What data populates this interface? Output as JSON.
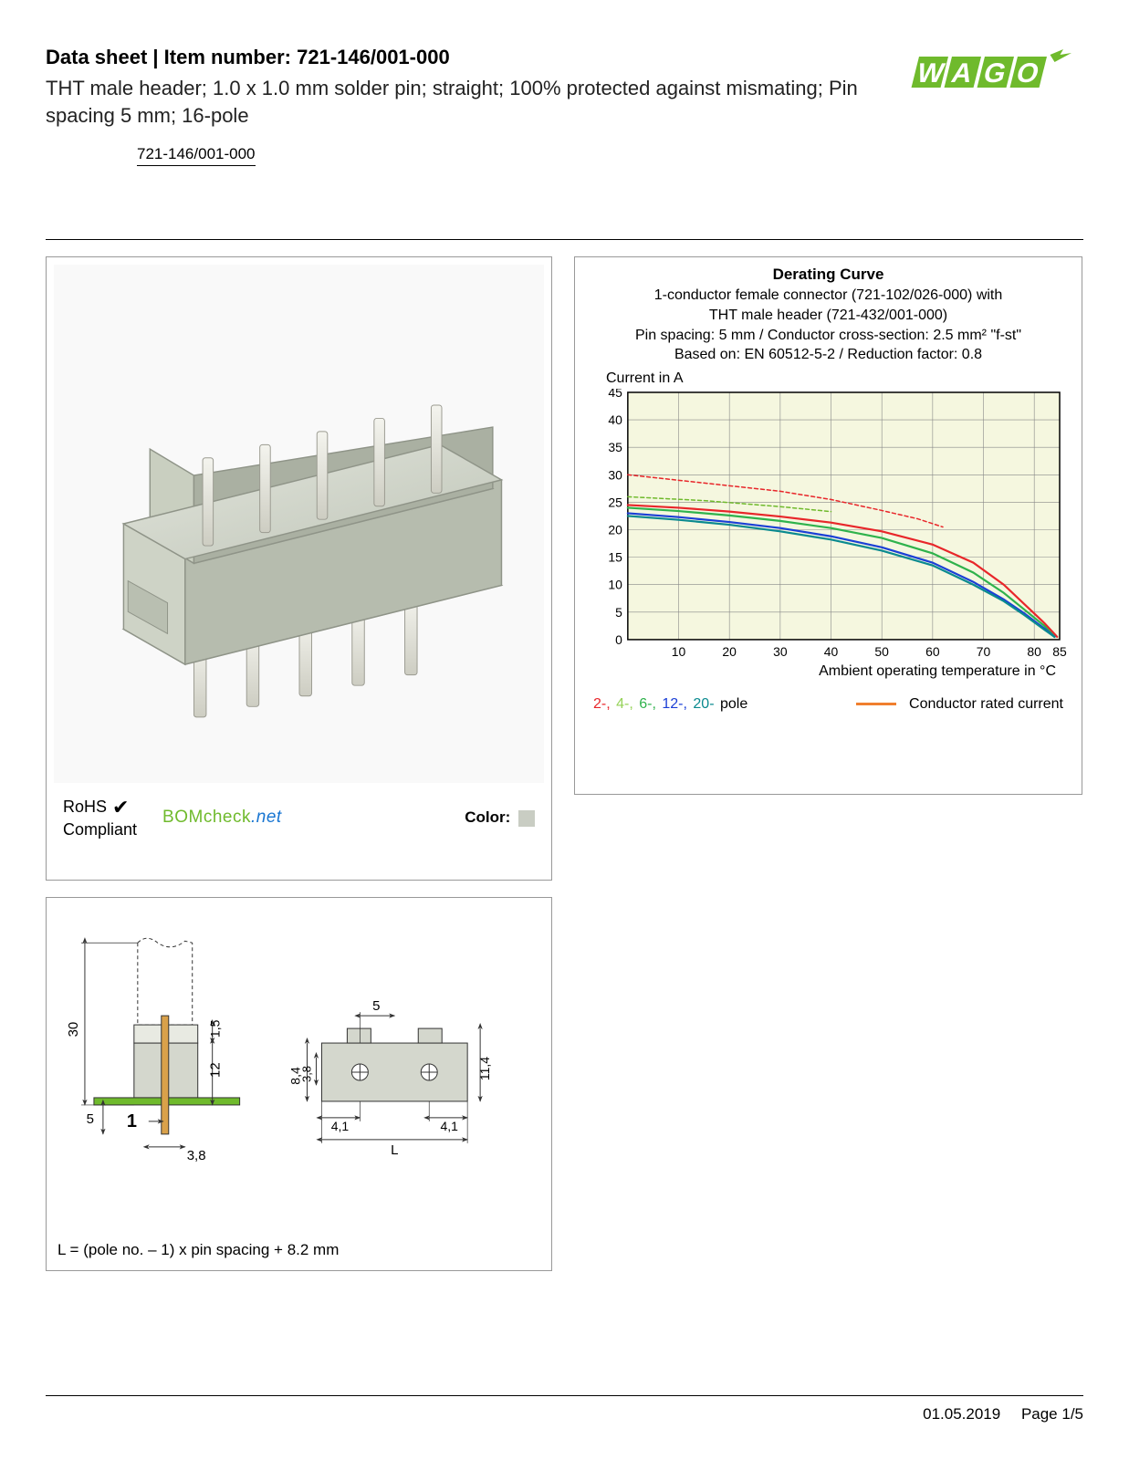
{
  "header": {
    "title_prefix": "Data sheet  |  Item number: ",
    "item_number": "721-146/001-000",
    "description": "THT male header; 1.0 x 1.0 mm solder pin; straight; 100% protected against mismating; Pin spacing 5 mm; 16-pole",
    "link_text": "721-146/001-000"
  },
  "logo": {
    "text": "WAGO",
    "fill": "#6fba2c",
    "stroke": "#3b7a1a"
  },
  "product_panel": {
    "header_color": "#cfd4c8",
    "pin_color": "#e8e8e0",
    "rohs_line1": "RoHS",
    "rohs_line2": "Compliant",
    "bomcheck_text": "BOMcheck",
    "bomcheck_suffix": ".net",
    "color_label": "Color:",
    "color_swatch": "#c9cdc3"
  },
  "chart": {
    "title": "Derating Curve",
    "sub1": "1-conductor female connector (721-102/026-000) with",
    "sub2": "THT male header (721-432/001-000)",
    "sub3": "Pin spacing: 5 mm / Conductor cross-section: 2.5 mm² \"f-st\"",
    "sub4": "Based on: EN 60512-5-2 / Reduction factor: 0.8",
    "ylabel": "Current in A",
    "xlabel": "Ambient operating temperature in °C",
    "background": "#f5f7df",
    "grid_color": "#888",
    "ylim": [
      0,
      45
    ],
    "ytick_step": 5,
    "xlim": [
      0,
      85
    ],
    "xticks": [
      10,
      20,
      30,
      40,
      50,
      60,
      70,
      80,
      85
    ],
    "series": [
      {
        "name": "2-pole-dashed",
        "color": "#e8262a",
        "dash": "4 3",
        "width": 1.5,
        "points": [
          [
            0,
            30
          ],
          [
            10,
            29
          ],
          [
            20,
            28
          ],
          [
            30,
            27
          ],
          [
            40,
            25.5
          ],
          [
            50,
            23.5
          ],
          [
            57,
            22
          ],
          [
            62,
            20.5
          ]
        ]
      },
      {
        "name": "4-pole-dashed",
        "color": "#6fba2c",
        "dash": "4 3",
        "width": 1.5,
        "points": [
          [
            0,
            26
          ],
          [
            15,
            25.3
          ],
          [
            30,
            24.2
          ],
          [
            40,
            23.3
          ]
        ]
      },
      {
        "name": "2-pole",
        "color": "#e8262a",
        "dash": "",
        "width": 2.2,
        "points": [
          [
            0,
            24.5
          ],
          [
            10,
            24
          ],
          [
            20,
            23.3
          ],
          [
            30,
            22.4
          ],
          [
            40,
            21.3
          ],
          [
            50,
            19.7
          ],
          [
            60,
            17.3
          ],
          [
            68,
            14
          ],
          [
            74,
            10
          ],
          [
            78,
            6.5
          ],
          [
            82,
            3
          ],
          [
            84.5,
            0.5
          ]
        ]
      },
      {
        "name": "6-pole",
        "color": "#2fb24c",
        "dash": "",
        "width": 2.2,
        "points": [
          [
            0,
            24
          ],
          [
            10,
            23.4
          ],
          [
            20,
            22.6
          ],
          [
            30,
            21.6
          ],
          [
            40,
            20.3
          ],
          [
            50,
            18.5
          ],
          [
            60,
            15.7
          ],
          [
            68,
            12.2
          ],
          [
            74,
            8.5
          ],
          [
            78,
            5.5
          ],
          [
            82,
            2.5
          ],
          [
            84,
            0.5
          ]
        ]
      },
      {
        "name": "12-pole",
        "color": "#1b3fd6",
        "dash": "",
        "width": 2.2,
        "points": [
          [
            0,
            23
          ],
          [
            10,
            22.3
          ],
          [
            20,
            21.4
          ],
          [
            30,
            20.3
          ],
          [
            40,
            18.8
          ],
          [
            50,
            16.8
          ],
          [
            60,
            14
          ],
          [
            68,
            10.5
          ],
          [
            74,
            7.3
          ],
          [
            78,
            4.8
          ],
          [
            82,
            2
          ],
          [
            84,
            0.5
          ]
        ]
      },
      {
        "name": "20-pole",
        "color": "#0a8a8f",
        "dash": "",
        "width": 2.2,
        "points": [
          [
            0,
            22.5
          ],
          [
            10,
            21.8
          ],
          [
            20,
            20.9
          ],
          [
            30,
            19.7
          ],
          [
            40,
            18.2
          ],
          [
            50,
            16.2
          ],
          [
            60,
            13.5
          ],
          [
            68,
            10
          ],
          [
            74,
            7
          ],
          [
            78,
            4.5
          ],
          [
            82,
            1.8
          ],
          [
            84,
            0.5
          ]
        ]
      }
    ],
    "legend_poles": [
      {
        "label": "2-,",
        "color": "#e8262a"
      },
      {
        "label": "4-,",
        "color": "#95d257"
      },
      {
        "label": "6-,",
        "color": "#2fb24c"
      },
      {
        "label": "12-,",
        "color": "#1b3fd6"
      },
      {
        "label": "20-",
        "color": "#0a8a8f"
      }
    ],
    "legend_pole_suffix": " pole",
    "legend_conductor": "Conductor rated current",
    "legend_conductor_color": "#f07f2e"
  },
  "dims": {
    "values": {
      "h_total": "30",
      "h_inner": "12",
      "h_top": "1,5",
      "h_base": "5",
      "w_pin": "3,8",
      "one": "1",
      "pitch": "5",
      "body_h1": "8,4",
      "body_h2": "3,8",
      "body_h3": "11,4",
      "side_w": "4,1",
      "len": "L"
    },
    "formula": "L = (pole no. – 1) x pin spacing + 8.2 mm",
    "stroke": "#333",
    "fill_body": "#d4d7cd",
    "fill_pcb": "#6fba2c",
    "fill_pin": "#d9a14a"
  },
  "footer": {
    "date": "01.05.2019",
    "page": "Page 1/5"
  }
}
